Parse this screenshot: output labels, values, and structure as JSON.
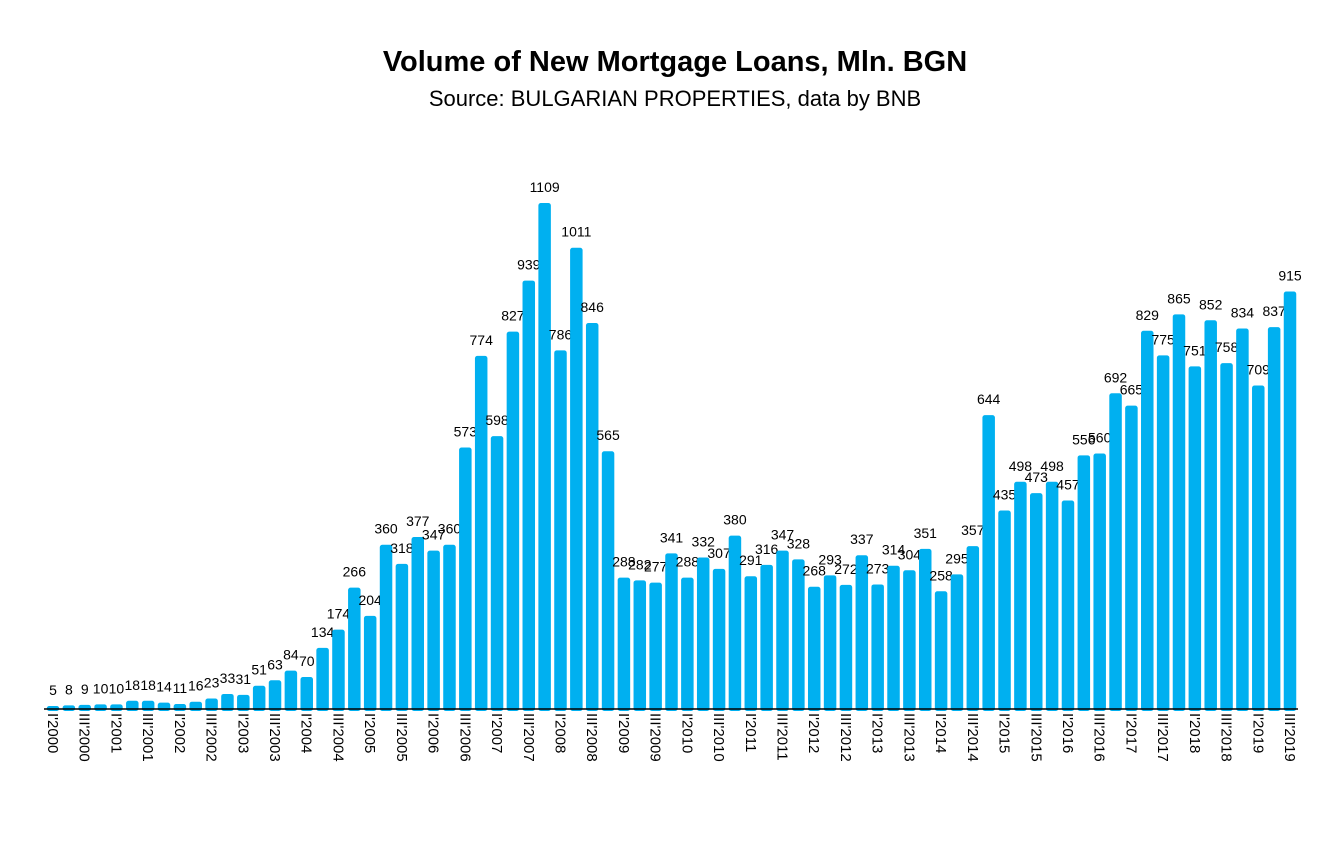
{
  "chart_data": {
    "type": "bar",
    "title": "Volume of New Mortgage Loans, Mln. BGN",
    "subtitle": "Source: BULGARIAN PROPERTIES, data by BNB",
    "xlabel": "",
    "ylabel": "",
    "ylim": [
      0,
      1109
    ],
    "grid": false,
    "bar_color": "#00B0F0",
    "categories": [
      "I'2000",
      "II'2000",
      "III'2000",
      "IV'2000",
      "I'2001",
      "II'2001",
      "III'2001",
      "IV'2001",
      "I'2002",
      "II'2002",
      "III'2002",
      "IV'2002",
      "I'2003",
      "II'2003",
      "III'2003",
      "IV'2003",
      "I'2004",
      "II'2004",
      "III'2004",
      "IV'2004",
      "I'2005",
      "II'2005",
      "III'2005",
      "IV'2005",
      "I'2006",
      "II'2006",
      "III'2006",
      "IV'2006",
      "I'2007",
      "II'2007",
      "III'2007",
      "IV'2007",
      "I'2008",
      "II'2008",
      "III'2008",
      "IV'2008",
      "I'2009",
      "II'2009",
      "III'2009",
      "IV'2009",
      "I'2010",
      "II'2010",
      "III'2010",
      "IV'2010",
      "I'2011",
      "II'2011",
      "III'2011",
      "IV'2011",
      "I'2012",
      "II'2012",
      "III'2012",
      "IV'2012",
      "I'2013",
      "II'2013",
      "III'2013",
      "IV'2013",
      "I'2014",
      "II'2014",
      "III'2014",
      "IV'2014",
      "I'2015",
      "II'2015",
      "III'2015",
      "IV'2015",
      "I'2016",
      "II'2016",
      "III'2016",
      "IV'2016",
      "I'2017",
      "II'2017",
      "III'2017",
      "IV'2017",
      "I'2018",
      "II'2018",
      "III'2018",
      "IV'2018",
      "I'2019",
      "II'2019",
      "III'2019"
    ],
    "shown_tick_labels": [
      "I'2000",
      "III'2000",
      "I'2001",
      "III'2001",
      "I'2002",
      "III'2002",
      "I'2003",
      "III'2003",
      "I'2004",
      "III'2004",
      "I'2005",
      "III'2005",
      "I'2006",
      "III'2006",
      "I'2007",
      "III'2007",
      "I'2008",
      "III'2008",
      "I'2009",
      "III'2009",
      "I'2010",
      "III'2010",
      "I'2011",
      "III'2011",
      "I'2012",
      "III'2012",
      "I'2013",
      "III'2013",
      "I'2014",
      "III'2014",
      "I'2015",
      "III'2015",
      "I'2016",
      "III'2016",
      "I'2017",
      "III'2017",
      "I'2018",
      "III'2018",
      "I'2019",
      "III'2019"
    ],
    "values": [
      5,
      8,
      9,
      10,
      10,
      18,
      18,
      14,
      11,
      16,
      23,
      33,
      31,
      51,
      63,
      84,
      70,
      134,
      174,
      266,
      204,
      360,
      318,
      377,
      347,
      360,
      573,
      774,
      598,
      827,
      939,
      1109,
      786,
      1011,
      846,
      565,
      288,
      282,
      277,
      341,
      288,
      332,
      307,
      380,
      291,
      316,
      347,
      328,
      268,
      293,
      272,
      337,
      273,
      314,
      304,
      351,
      258,
      295,
      357,
      644,
      435,
      498,
      473,
      498,
      457,
      556,
      560,
      692,
      665,
      829,
      775,
      865,
      751,
      852,
      758,
      834,
      709,
      837,
      915
    ]
  }
}
